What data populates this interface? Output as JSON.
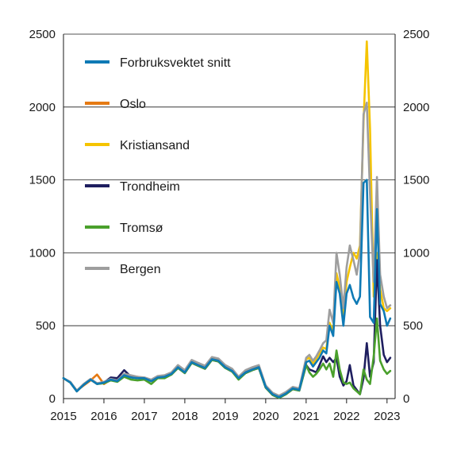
{
  "chart_data": {
    "type": "line",
    "title": "",
    "xlabel": "",
    "ylabel": "",
    "xlim": [
      2015,
      2023.2
    ],
    "ylim": [
      0,
      2500
    ],
    "grid": {
      "horizontal": true,
      "vertical": false
    },
    "legend_position": "top-left",
    "x_ticks": [
      2015,
      2016,
      2017,
      2018,
      2019,
      2020,
      2021,
      2022,
      2023
    ],
    "x_tick_labels": [
      "2015",
      "2016",
      "2017",
      "2018",
      "2019",
      "2020",
      "2021",
      "2022",
      "2023"
    ],
    "y_ticks": [
      0,
      500,
      1000,
      1500,
      2000,
      2500
    ],
    "y_tick_labels": [
      "0",
      "500",
      "1000",
      "1500",
      "2000",
      "2500"
    ],
    "series": [
      {
        "name": "Forbruksvektet snitt",
        "color": "#0f7ab5",
        "x": [
          2015,
          2015.17,
          2015.33,
          2015.5,
          2015.67,
          2015.83,
          2016,
          2016.17,
          2016.33,
          2016.5,
          2016.67,
          2016.83,
          2017,
          2017.17,
          2017.33,
          2017.5,
          2017.67,
          2017.83,
          2018,
          2018.17,
          2018.33,
          2018.5,
          2018.67,
          2018.83,
          2019,
          2019.17,
          2019.33,
          2019.5,
          2019.67,
          2019.83,
          2020,
          2020.17,
          2020.33,
          2020.5,
          2020.67,
          2020.83,
          2021,
          2021.08,
          2021.17,
          2021.25,
          2021.33,
          2021.42,
          2021.5,
          2021.58,
          2021.67,
          2021.75,
          2021.83,
          2021.92,
          2022,
          2022.08,
          2022.17,
          2022.25,
          2022.33,
          2022.42,
          2022.5,
          2022.58,
          2022.67,
          2022.75,
          2022.83,
          2022.92,
          2023,
          2023.08
        ],
        "values": [
          140,
          110,
          50,
          95,
          130,
          100,
          110,
          130,
          120,
          160,
          145,
          140,
          140,
          120,
          145,
          150,
          170,
          215,
          180,
          250,
          230,
          210,
          270,
          260,
          215,
          190,
          140,
          180,
          200,
          215,
          80,
          30,
          10,
          35,
          70,
          60,
          250,
          260,
          220,
          250,
          280,
          330,
          310,
          500,
          430,
          800,
          720,
          500,
          720,
          780,
          690,
          650,
          700,
          1480,
          1500,
          560,
          520,
          1300,
          650,
          600,
          500,
          550
        ]
      },
      {
        "name": "Oslo",
        "color": "#e57a14",
        "x": [
          2015,
          2015.17,
          2015.33,
          2015.5,
          2015.67,
          2015.83,
          2016,
          2016.17,
          2016.33,
          2016.5,
          2016.67,
          2016.83,
          2017,
          2017.17,
          2017.33,
          2017.5,
          2017.67,
          2017.83,
          2018,
          2018.17,
          2018.33,
          2018.5,
          2018.67,
          2018.83,
          2019,
          2019.17,
          2019.33,
          2019.5,
          2019.67,
          2019.83,
          2020,
          2020.17,
          2020.33,
          2020.5,
          2020.67,
          2020.83,
          2021
        ],
        "values": [
          140,
          110,
          55,
          90,
          125,
          165,
          100,
          130,
          125,
          165,
          150,
          150,
          140,
          125,
          150,
          150,
          170,
          220,
          185,
          255,
          235,
          215,
          275,
          265,
          220,
          195,
          145,
          185,
          205,
          220,
          85,
          35,
          15,
          40,
          75,
          65,
          240
        ]
      },
      {
        "name": "Kristiansand",
        "color": "#f5c400",
        "x": [
          2015,
          2015.17,
          2015.33,
          2015.5,
          2015.67,
          2015.83,
          2016,
          2016.17,
          2016.33,
          2016.5,
          2016.67,
          2016.83,
          2017,
          2017.17,
          2017.33,
          2017.5,
          2017.67,
          2017.83,
          2018,
          2018.17,
          2018.33,
          2018.5,
          2018.67,
          2018.83,
          2019,
          2019.17,
          2019.33,
          2019.5,
          2019.67,
          2019.83,
          2020,
          2020.17,
          2020.33,
          2020.5,
          2020.67,
          2020.83,
          2021,
          2021.08,
          2021.17,
          2021.25,
          2021.33,
          2021.42,
          2021.5,
          2021.58,
          2021.67,
          2021.75,
          2021.83,
          2021.92,
          2022,
          2022.08,
          2022.17,
          2022.25,
          2022.33,
          2022.42,
          2022.5,
          2022.58,
          2022.67,
          2022.75,
          2022.83,
          2022.92,
          2023,
          2023.08
        ],
        "values": [
          140,
          110,
          55,
          95,
          130,
          105,
          110,
          130,
          125,
          160,
          150,
          145,
          140,
          125,
          150,
          150,
          170,
          215,
          185,
          250,
          230,
          210,
          270,
          260,
          215,
          190,
          145,
          180,
          200,
          215,
          80,
          30,
          10,
          35,
          70,
          60,
          270,
          280,
          240,
          270,
          310,
          350,
          340,
          520,
          460,
          860,
          760,
          550,
          800,
          900,
          1000,
          960,
          1050,
          1900,
          2450,
          1850,
          700,
          1000,
          750,
          620,
          600,
          620
        ]
      },
      {
        "name": "Trondheim",
        "color": "#1e1e5f",
        "x": [
          2015,
          2015.17,
          2015.33,
          2015.5,
          2015.67,
          2015.83,
          2016,
          2016.17,
          2016.33,
          2016.5,
          2016.67,
          2016.83,
          2017,
          2017.17,
          2017.33,
          2017.5,
          2017.67,
          2017.83,
          2018,
          2018.17,
          2018.33,
          2018.5,
          2018.67,
          2018.83,
          2019,
          2019.17,
          2019.33,
          2019.5,
          2019.67,
          2019.83,
          2020,
          2020.17,
          2020.33,
          2020.5,
          2020.67,
          2020.83,
          2021,
          2021.08,
          2021.17,
          2021.25,
          2021.33,
          2021.42,
          2021.5,
          2021.58,
          2021.67,
          2021.75,
          2021.83,
          2021.92,
          2022,
          2022.08,
          2022.17,
          2022.25,
          2022.33,
          2022.42,
          2022.5,
          2022.58,
          2022.67,
          2022.75,
          2022.83,
          2022.92,
          2023,
          2023.08
        ],
        "values": [
          140,
          110,
          50,
          95,
          130,
          100,
          110,
          145,
          140,
          195,
          150,
          140,
          140,
          120,
          150,
          150,
          165,
          210,
          175,
          245,
          225,
          205,
          265,
          255,
          210,
          185,
          140,
          175,
          195,
          210,
          75,
          25,
          5,
          30,
          65,
          55,
          230,
          200,
          190,
          180,
          230,
          290,
          250,
          280,
          250,
          280,
          150,
          90,
          120,
          230,
          90,
          60,
          30,
          140,
          380,
          150,
          250,
          950,
          500,
          300,
          250,
          280
        ]
      },
      {
        "name": "Tromsø",
        "color": "#4aa02c",
        "x": [
          2015,
          2015.17,
          2015.33,
          2015.5,
          2015.67,
          2015.83,
          2016,
          2016.17,
          2016.33,
          2016.5,
          2016.67,
          2016.83,
          2017,
          2017.17,
          2017.33,
          2017.5,
          2017.67,
          2017.83,
          2018,
          2018.17,
          2018.33,
          2018.5,
          2018.67,
          2018.83,
          2019,
          2019.17,
          2019.33,
          2019.5,
          2019.67,
          2019.83,
          2020,
          2020.17,
          2020.33,
          2020.5,
          2020.67,
          2020.83,
          2021,
          2021.08,
          2021.17,
          2021.25,
          2021.33,
          2021.42,
          2021.5,
          2021.58,
          2021.67,
          2021.75,
          2021.83,
          2021.92,
          2022,
          2022.08,
          2022.17,
          2022.25,
          2022.33,
          2022.42,
          2022.5,
          2022.58,
          2022.67,
          2022.75,
          2022.83,
          2022.92,
          2023,
          2023.08
        ],
        "values": [
          140,
          110,
          50,
          95,
          130,
          100,
          105,
          125,
          115,
          150,
          130,
          125,
          130,
          100,
          140,
          140,
          165,
          210,
          175,
          245,
          225,
          205,
          265,
          255,
          210,
          185,
          130,
          175,
          195,
          210,
          75,
          25,
          5,
          30,
          65,
          55,
          230,
          180,
          150,
          170,
          200,
          240,
          200,
          240,
          150,
          330,
          200,
          110,
          100,
          110,
          70,
          50,
          30,
          200,
          130,
          100,
          290,
          550,
          260,
          200,
          170,
          190
        ]
      },
      {
        "name": "Bergen",
        "color": "#9e9e9e",
        "x": [
          2015,
          2015.17,
          2015.33,
          2015.5,
          2015.67,
          2015.83,
          2016,
          2016.17,
          2016.33,
          2016.5,
          2016.67,
          2016.83,
          2017,
          2017.17,
          2017.33,
          2017.5,
          2017.67,
          2017.83,
          2018,
          2018.17,
          2018.33,
          2018.5,
          2018.67,
          2018.83,
          2019,
          2019.17,
          2019.33,
          2019.5,
          2019.67,
          2019.83,
          2020,
          2020.17,
          2020.33,
          2020.5,
          2020.67,
          2020.83,
          2021,
          2021.08,
          2021.17,
          2021.25,
          2021.33,
          2021.42,
          2021.5,
          2021.58,
          2021.67,
          2021.75,
          2021.83,
          2021.92,
          2022,
          2022.08,
          2022.17,
          2022.25,
          2022.33,
          2022.42,
          2022.5,
          2022.58,
          2022.67,
          2022.75,
          2022.83,
          2022.92,
          2023,
          2023.08
        ],
        "values": [
          140,
          115,
          55,
          100,
          135,
          105,
          115,
          135,
          125,
          170,
          160,
          150,
          145,
          130,
          155,
          160,
          180,
          230,
          195,
          265,
          245,
          225,
          285,
          275,
          230,
          205,
          150,
          195,
          215,
          230,
          90,
          40,
          20,
          45,
          80,
          70,
          280,
          300,
          260,
          290,
          330,
          380,
          400,
          610,
          520,
          1000,
          850,
          620,
          900,
          1050,
          950,
          850,
          1000,
          1950,
          2030,
          1400,
          800,
          1520,
          850,
          700,
          620,
          640
        ]
      }
    ]
  }
}
